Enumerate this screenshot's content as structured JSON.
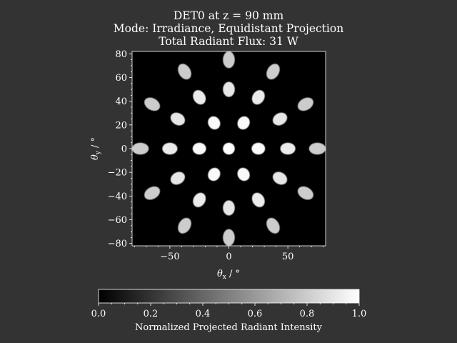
{
  "chart_data": {
    "type": "heatmap",
    "title_lines": [
      "DET0 at z = 90 mm",
      "Mode: Irradiance, Equidistant Projection",
      "Total Radiant Flux: 31 W"
    ],
    "xlabel_symbol": "θ",
    "xlabel_sub": "x",
    "xlabel_unit": " / °",
    "ylabel_symbol": "θ",
    "ylabel_sub": "y",
    "ylabel_unit": " / °",
    "xlim": [
      -82,
      82
    ],
    "ylim": [
      -82,
      82
    ],
    "x_ticks": [
      -50,
      0,
      50
    ],
    "x_tick_labels": [
      "−50",
      "0",
      "50"
    ],
    "y_ticks": [
      -80,
      -60,
      -40,
      -20,
      0,
      20,
      40,
      60,
      80
    ],
    "y_tick_labels": [
      "−80",
      "−60",
      "−40",
      "−20",
      "0",
      "20",
      "40",
      "60",
      "80"
    ],
    "background_color": "#333333",
    "plot_background": "#000000",
    "colorbar": {
      "label": "Normalized Projected Radiant Intensity",
      "range": [
        0,
        1
      ],
      "ticks": [
        0,
        0.2,
        0.4,
        0.6,
        0.8,
        1.0
      ],
      "tick_labels": [
        "0.0",
        "0.2",
        "0.4",
        "0.6",
        "0.8",
        "1.0"
      ],
      "colormap": "gray"
    },
    "spots": [
      {
        "x": 0,
        "y": 0,
        "intensity": 1.0
      },
      {
        "x": 25,
        "y": 0,
        "intensity": 0.98
      },
      {
        "x": -25,
        "y": 0,
        "intensity": 0.98
      },
      {
        "x": 12.5,
        "y": 21.7,
        "intensity": 0.98
      },
      {
        "x": -12.5,
        "y": 21.7,
        "intensity": 0.98
      },
      {
        "x": 12.5,
        "y": -21.7,
        "intensity": 0.98
      },
      {
        "x": -12.5,
        "y": -21.7,
        "intensity": 0.98
      },
      {
        "x": 50,
        "y": 0,
        "intensity": 0.92
      },
      {
        "x": -50,
        "y": 0,
        "intensity": 0.92
      },
      {
        "x": 25,
        "y": 43.3,
        "intensity": 0.92
      },
      {
        "x": -25,
        "y": 43.3,
        "intensity": 0.92
      },
      {
        "x": 25,
        "y": -43.3,
        "intensity": 0.92
      },
      {
        "x": -25,
        "y": -43.3,
        "intensity": 0.92
      },
      {
        "x": 43.3,
        "y": 25,
        "intensity": 0.9
      },
      {
        "x": -43.3,
        "y": 25,
        "intensity": 0.9
      },
      {
        "x": 43.3,
        "y": -25,
        "intensity": 0.9
      },
      {
        "x": -43.3,
        "y": -25,
        "intensity": 0.9
      },
      {
        "x": 0,
        "y": 50,
        "intensity": 0.9
      },
      {
        "x": 0,
        "y": -50,
        "intensity": 0.9
      },
      {
        "x": 75,
        "y": 0,
        "intensity": 0.8
      },
      {
        "x": -75,
        "y": 0,
        "intensity": 0.8
      },
      {
        "x": 37.5,
        "y": 65,
        "intensity": 0.8
      },
      {
        "x": -37.5,
        "y": 65,
        "intensity": 0.8
      },
      {
        "x": 37.5,
        "y": -65,
        "intensity": 0.8
      },
      {
        "x": -37.5,
        "y": -65,
        "intensity": 0.8
      },
      {
        "x": 65,
        "y": 37.5,
        "intensity": 0.8
      },
      {
        "x": -65,
        "y": 37.5,
        "intensity": 0.8
      },
      {
        "x": 65,
        "y": -37.5,
        "intensity": 0.8
      },
      {
        "x": -65,
        "y": -37.5,
        "intensity": 0.8
      },
      {
        "x": 0,
        "y": 75,
        "intensity": 0.8
      },
      {
        "x": 0,
        "y": -75,
        "intensity": 0.8
      }
    ]
  }
}
